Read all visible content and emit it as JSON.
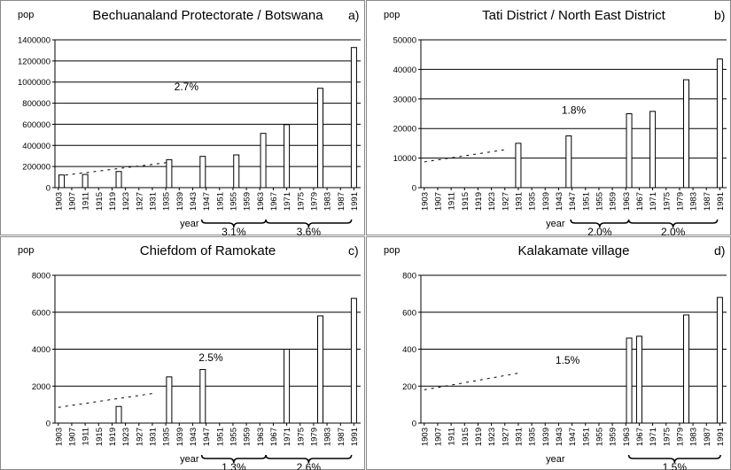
{
  "chart_data": [
    {
      "type": "bar",
      "title": "Bechuanaland Protectorate / Botswana",
      "panel_label": "a)",
      "ylabel": "pop",
      "xlabel": "year",
      "x": [
        1904,
        1911,
        1921,
        1936,
        1946,
        1956,
        1964,
        1971,
        1981,
        1991
      ],
      "values": [
        120000,
        125000,
        153000,
        265000,
        296000,
        310000,
        514000,
        597000,
        941000,
        1327000
      ],
      "trend": {
        "x": [
          1903,
          1936
        ],
        "values": [
          110000,
          240000
        ]
      },
      "annotations": [
        "2.7%",
        "3.1%",
        "3.6%"
      ],
      "color": "#ffffff",
      "xlim": [
        1902,
        1993
      ],
      "xticks": [
        1903,
        1907,
        1911,
        1915,
        1919,
        1923,
        1927,
        1931,
        1935,
        1939,
        1943,
        1947,
        1951,
        1955,
        1959,
        1963,
        1967,
        1971,
        1975,
        1979,
        1983,
        1987,
        1991
      ],
      "ylim": [
        0,
        1400000
      ],
      "yticks": [
        0,
        200000,
        400000,
        600000,
        800000,
        1000000,
        1200000,
        1400000
      ],
      "grid": true
    },
    {
      "type": "bar",
      "title": "Tati District / North East District",
      "panel_label": "b)",
      "ylabel": "pop",
      "xlabel": "year",
      "x": [
        1931,
        1946,
        1964,
        1971,
        1981,
        1991
      ],
      "values": [
        15000,
        17500,
        25000,
        25800,
        36500,
        43500
      ],
      "trend": {
        "x": [
          1903,
          1928
        ],
        "values": [
          8700,
          13000
        ]
      },
      "annotations": [
        "1.8%",
        "2.0%",
        "2.0%"
      ],
      "color": "#ffffff",
      "xlim": [
        1902,
        1993
      ],
      "xticks": [
        1903,
        1907,
        1911,
        1915,
        1919,
        1923,
        1927,
        1931,
        1935,
        1939,
        1943,
        1947,
        1951,
        1955,
        1959,
        1963,
        1967,
        1971,
        1975,
        1979,
        1983,
        1987,
        1991
      ],
      "ylim": [
        0,
        50000
      ],
      "yticks": [
        0,
        10000,
        20000,
        30000,
        40000,
        50000
      ],
      "grid": true
    },
    {
      "type": "bar",
      "title": "Chiefdom of Ramokate",
      "panel_label": "c)",
      "ylabel": "pop",
      "xlabel": "year",
      "x": [
        1921,
        1936,
        1946,
        1971,
        1981,
        1991
      ],
      "values": [
        900,
        2500,
        2900,
        4000,
        5800,
        6750
      ],
      "trend": {
        "x": [
          1903,
          1931
        ],
        "values": [
          850,
          1600
        ]
      },
      "annotations": [
        "2.5%",
        "1.3%",
        "2.6%"
      ],
      "color": "#ffffff",
      "xlim": [
        1902,
        1993
      ],
      "xticks": [
        1903,
        1907,
        1911,
        1915,
        1919,
        1923,
        1927,
        1931,
        1935,
        1939,
        1943,
        1947,
        1951,
        1955,
        1959,
        1963,
        1967,
        1971,
        1975,
        1979,
        1983,
        1987,
        1991
      ],
      "ylim": [
        0,
        8000
      ],
      "yticks": [
        0,
        2000,
        4000,
        6000,
        8000
      ],
      "grid": true
    },
    {
      "type": "bar",
      "title": "Kalakamate village",
      "panel_label": "d)",
      "ylabel": "pop",
      "xlabel": "year",
      "x": [
        1964,
        1967,
        1981,
        1991
      ],
      "values": [
        460,
        470,
        585,
        680
      ],
      "trend": {
        "x": [
          1903,
          1931
        ],
        "values": [
          180,
          270
        ]
      },
      "annotations": [
        "1.5%",
        "1.5%"
      ],
      "color": "#ffffff",
      "xlim": [
        1902,
        1993
      ],
      "xticks": [
        1903,
        1907,
        1911,
        1915,
        1919,
        1923,
        1927,
        1931,
        1935,
        1939,
        1943,
        1947,
        1951,
        1955,
        1959,
        1963,
        1967,
        1971,
        1975,
        1979,
        1983,
        1987,
        1991
      ],
      "ylim": [
        0,
        800
      ],
      "yticks": [
        0,
        200,
        400,
        600,
        800
      ],
      "grid": true
    }
  ]
}
